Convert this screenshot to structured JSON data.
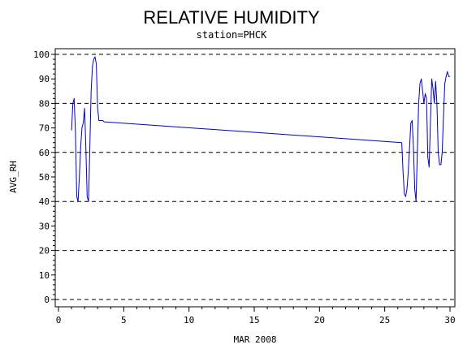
{
  "chart_data": {
    "type": "line",
    "title": "RELATIVE HUMIDITY",
    "subtitle": "station=PHCK",
    "xlabel": "MAR 2008",
    "ylabel": "AVG_RH",
    "xlim": [
      0,
      30
    ],
    "ylim": [
      0,
      100
    ],
    "x_ticks": [
      0,
      5,
      10,
      15,
      20,
      25,
      30
    ],
    "y_ticks": [
      0,
      10,
      20,
      30,
      40,
      50,
      60,
      70,
      80,
      90,
      100
    ],
    "grid": {
      "horizontal_dashed_at": [
        0,
        20,
        40,
        60,
        80,
        100
      ]
    },
    "line_color": "#0000cc",
    "series": [
      {
        "x": [
          1.0,
          1.1,
          1.2,
          1.3,
          1.4,
          1.5,
          1.6,
          1.7,
          1.8,
          1.9,
          2.0,
          2.1,
          2.2,
          2.3,
          2.4,
          2.5,
          2.6,
          2.7,
          2.8,
          2.9,
          3.0,
          3.1,
          3.2,
          3.3,
          3.4,
          3.5,
          26.3,
          26.4,
          26.5,
          26.6,
          26.7,
          26.8,
          26.9,
          27.0,
          27.1,
          27.2,
          27.3,
          27.4,
          27.5,
          27.6,
          27.7,
          27.8,
          27.9,
          28.0,
          28.1,
          28.2,
          28.3,
          28.4,
          28.5,
          28.6,
          28.7,
          28.8,
          28.9,
          29.0,
          29.1,
          29.2,
          29.3,
          29.4,
          29.5,
          29.6,
          29.7,
          29.8,
          29.9,
          30.0
        ],
        "y": [
          69,
          80,
          82,
          68,
          42,
          40,
          50,
          62,
          70,
          72,
          78,
          62,
          42,
          40,
          62,
          85,
          95,
          98,
          99,
          96,
          78,
          73,
          73,
          73,
          73,
          72.5,
          64,
          52,
          43,
          42,
          45,
          52,
          62,
          72,
          73,
          62,
          45,
          40,
          60,
          80,
          88,
          90,
          85,
          80,
          84,
          82,
          58,
          54,
          72,
          90,
          86,
          80,
          89,
          80,
          60,
          55,
          55,
          60,
          75,
          88,
          91,
          93,
          91,
          91
        ]
      }
    ]
  }
}
